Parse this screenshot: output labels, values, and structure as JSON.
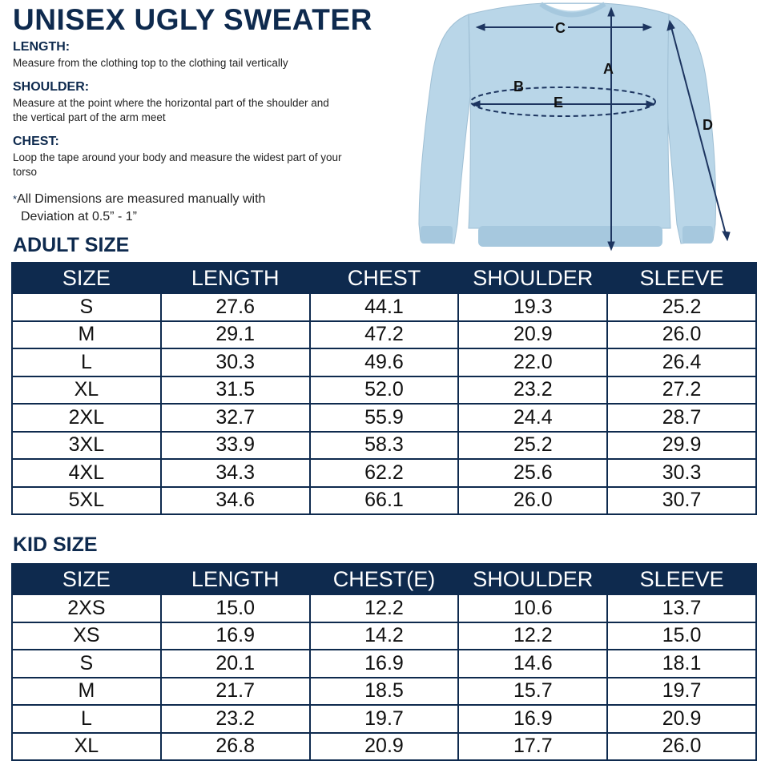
{
  "title": "UNISEX UGLY SWEATER",
  "measure": {
    "length": {
      "heading": "LENGTH:",
      "text": "Measure from the clothing top to the clothing tail vertically"
    },
    "shoulder": {
      "heading": "SHOULDER:",
      "text": "Measure at the point where the horizontal part of the shoulder and the vertical part of the arm meet"
    },
    "chest": {
      "heading": "CHEST:",
      "text": "Loop the tape around your body and measure the widest part of your torso"
    }
  },
  "note": {
    "star": "*",
    "line1": "All Dimensions are measured manually with",
    "line2": "Deviation at 0.5” - 1”"
  },
  "diagram": {
    "labels": {
      "a": "A",
      "b": "B",
      "c": "C",
      "d": "D",
      "e": "E"
    },
    "colors": {
      "body": "#b9d6e8",
      "cuff": "#a6c8de",
      "line": "#1d3560"
    }
  },
  "adult": {
    "heading": "ADULT SIZE",
    "columns": [
      "SIZE",
      "LENGTH",
      "CHEST",
      "SHOULDER",
      "SLEEVE"
    ],
    "rows": [
      [
        "S",
        "27.6",
        "44.1",
        "19.3",
        "25.2"
      ],
      [
        "M",
        "29.1",
        "47.2",
        "20.9",
        "26.0"
      ],
      [
        "L",
        "30.3",
        "49.6",
        "22.0",
        "26.4"
      ],
      [
        "XL",
        "31.5",
        "52.0",
        "23.2",
        "27.2"
      ],
      [
        "2XL",
        "32.7",
        "55.9",
        "24.4",
        "28.7"
      ],
      [
        "3XL",
        "33.9",
        "58.3",
        "25.2",
        "29.9"
      ],
      [
        "4XL",
        "34.3",
        "62.2",
        "25.6",
        "30.3"
      ],
      [
        "5XL",
        "34.6",
        "66.1",
        "26.0",
        "30.7"
      ]
    ]
  },
  "kid": {
    "heading": "KID SIZE",
    "columns": [
      "SIZE",
      "LENGTH",
      "CHEST(E)",
      "SHOULDER",
      "SLEEVE"
    ],
    "rows": [
      [
        "2XS",
        "15.0",
        "12.2",
        "10.6",
        "13.7"
      ],
      [
        "XS",
        "16.9",
        "14.2",
        "12.2",
        "15.0"
      ],
      [
        "S",
        "20.1",
        "16.9",
        "14.6",
        "18.1"
      ],
      [
        "M",
        "21.7",
        "18.5",
        "15.7",
        "19.7"
      ],
      [
        "L",
        "23.2",
        "19.7",
        "16.9",
        "20.9"
      ],
      [
        "XL",
        "26.8",
        "20.9",
        "17.7",
        "26.0"
      ]
    ]
  },
  "theme": {
    "navy": "#0e2a4e"
  }
}
